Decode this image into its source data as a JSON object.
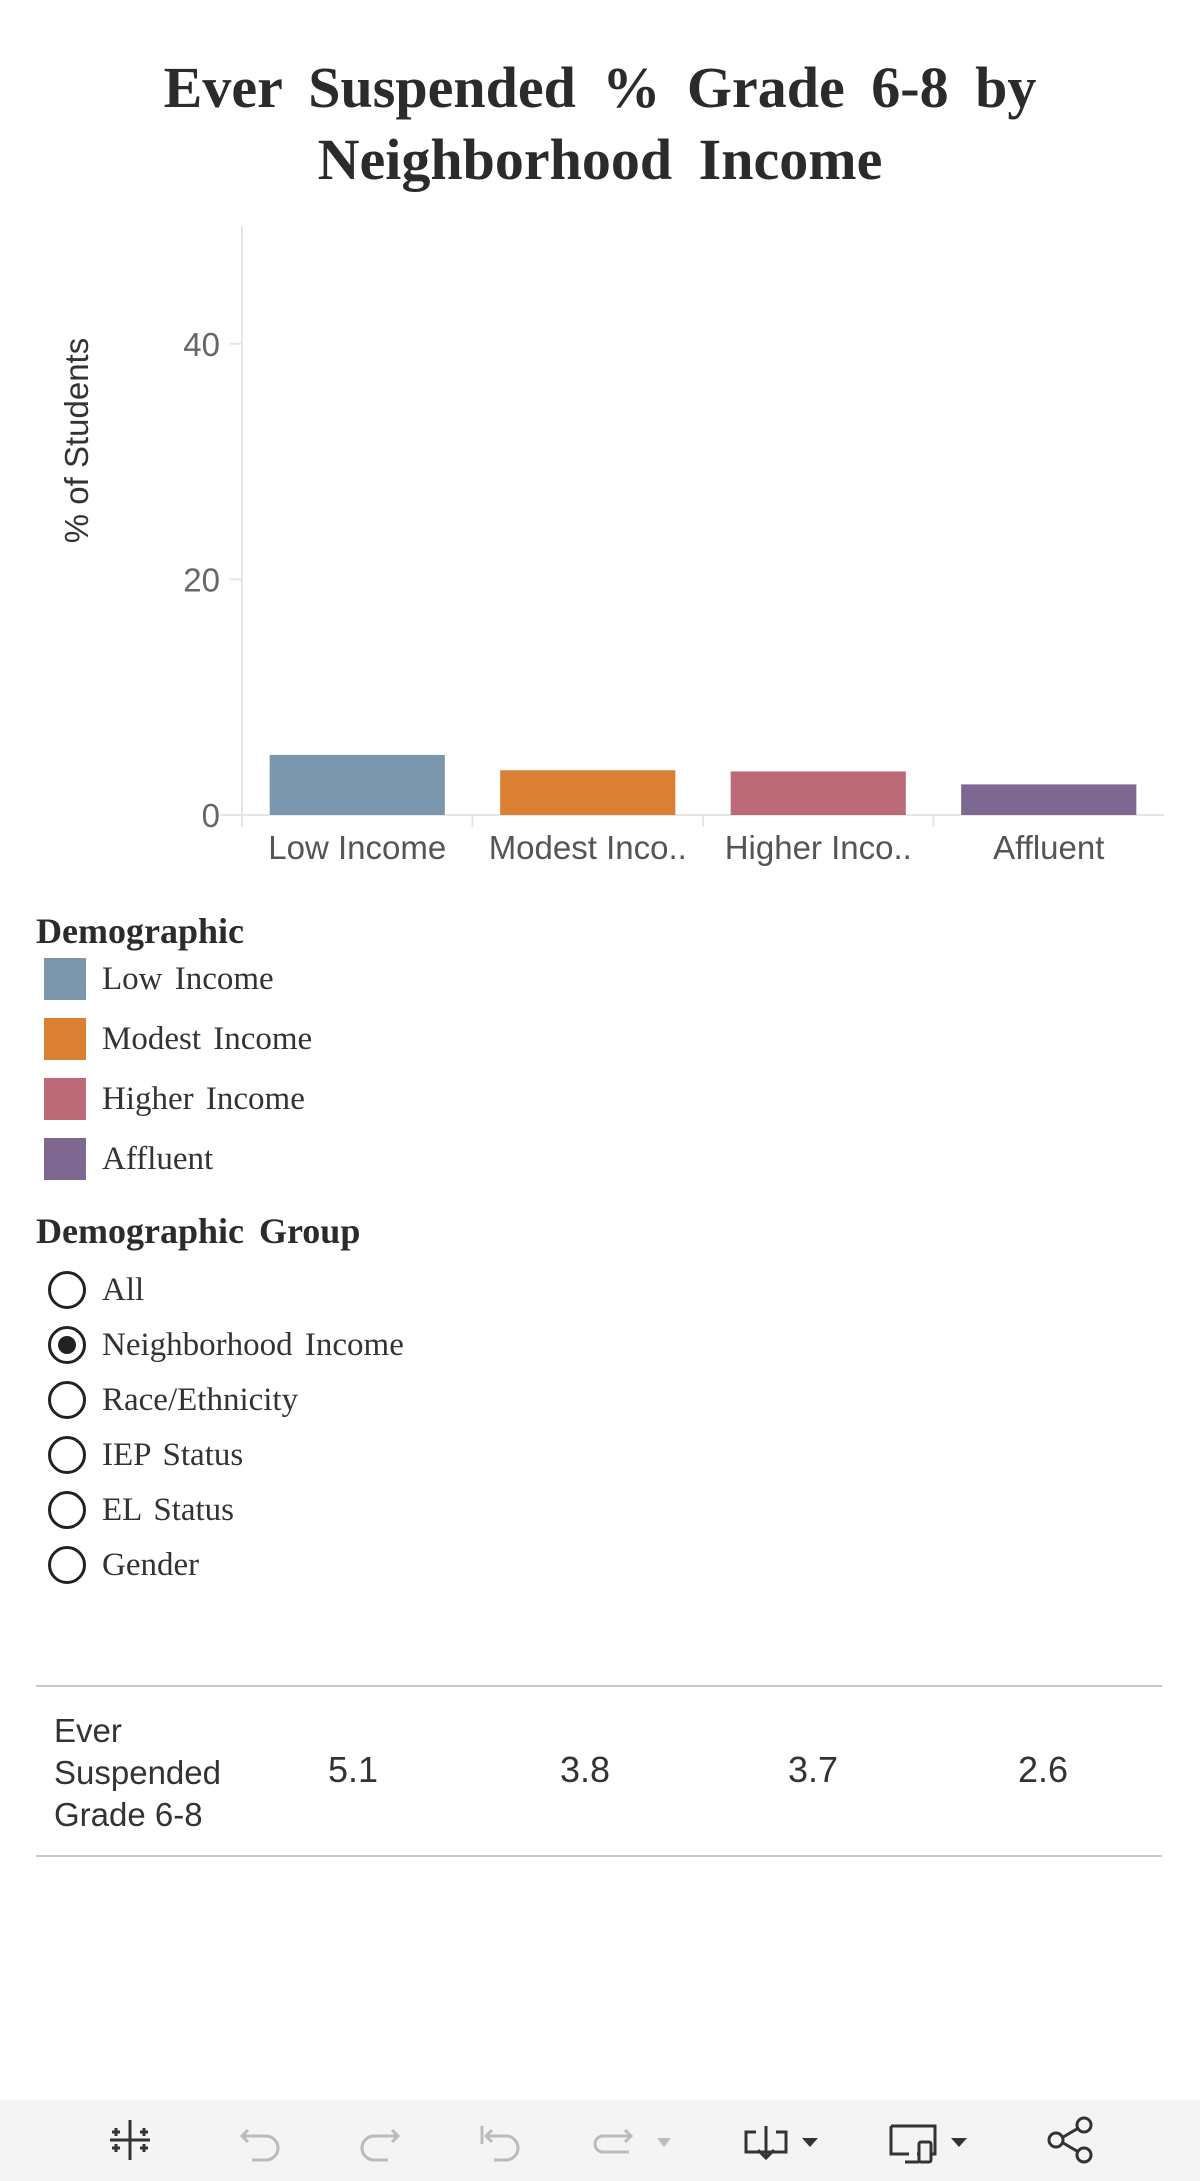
{
  "chart_data": {
    "type": "bar",
    "title": "Ever Suspended % Grade 6-8 by Neighborhood Income",
    "ylabel": "% of Students",
    "xlabel": "",
    "ylim": [
      0,
      50
    ],
    "yticks": [
      0,
      20,
      40
    ],
    "grid": false,
    "categories": [
      "Low Income",
      "Modest Inco..",
      "Higher Inco..",
      "Affluent"
    ],
    "values": [
      5.1,
      3.8,
      3.7,
      2.6
    ],
    "colors": [
      "#7b97ad",
      "#d98032",
      "#bc6a78",
      "#7e6891"
    ]
  },
  "legend": {
    "title": "Demographic",
    "items": [
      {
        "label": "Low Income",
        "color": "#7b97ad"
      },
      {
        "label": "Modest Income",
        "color": "#d98032"
      },
      {
        "label": "Higher Income",
        "color": "#bc6a78"
      },
      {
        "label": "Affluent",
        "color": "#7e6891"
      }
    ]
  },
  "filter": {
    "title": "Demographic Group",
    "options": [
      {
        "label": "All",
        "checked": false
      },
      {
        "label": "Neighborhood Income",
        "checked": true
      },
      {
        "label": "Race/Ethnicity",
        "checked": false
      },
      {
        "label": "IEP Status",
        "checked": false
      },
      {
        "label": "EL Status",
        "checked": false
      },
      {
        "label": "Gender",
        "checked": false
      }
    ]
  },
  "table": {
    "row_label": "Ever Suspended Grade 6-8",
    "values": [
      "5.1",
      "3.8",
      "3.7",
      "2.6"
    ]
  },
  "toolbar": {
    "icons": [
      "tableau-logo-icon",
      "undo-icon",
      "redo-icon",
      "revert-icon",
      "refresh-icon",
      "pause-icon",
      "download-icon",
      "device-layout-icon",
      "share-icon"
    ]
  }
}
